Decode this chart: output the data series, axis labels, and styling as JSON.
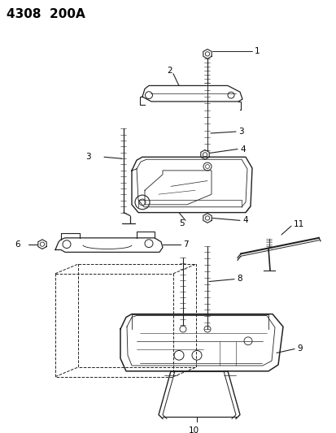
{
  "title": "4308  200A",
  "bg": "#ffffff",
  "lc": "#222222",
  "fig_w": 4.14,
  "fig_h": 5.33,
  "dpi": 100
}
